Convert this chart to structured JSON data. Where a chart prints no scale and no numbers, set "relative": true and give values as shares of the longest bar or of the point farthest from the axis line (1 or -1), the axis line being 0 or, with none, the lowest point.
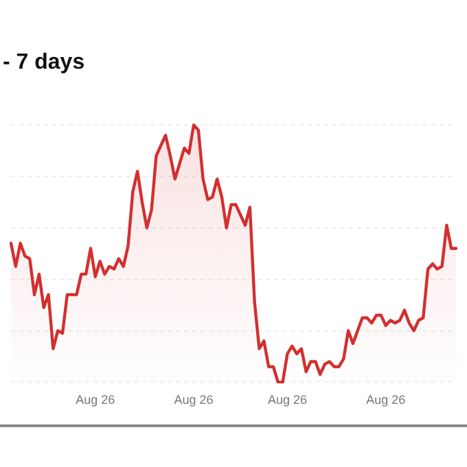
{
  "chart_data": {
    "type": "area",
    "title": "- 7 days",
    "relative": true,
    "grid": "y",
    "legend": false,
    "marker": "none",
    "categories": [
      null,
      null,
      null,
      null,
      null,
      null,
      null,
      null,
      null,
      null,
      null,
      null,
      null,
      null,
      null,
      null,
      null,
      null,
      "Aug 26",
      null,
      null,
      null,
      null,
      null,
      null,
      null,
      null,
      null,
      null,
      null,
      null,
      null,
      null,
      null,
      null,
      null,
      null,
      null,
      null,
      "Aug 26",
      null,
      null,
      null,
      null,
      null,
      null,
      null,
      null,
      null,
      null,
      null,
      null,
      null,
      null,
      null,
      null,
      null,
      null,
      null,
      "Aug 26",
      null,
      null,
      null,
      null,
      null,
      null,
      null,
      null,
      null,
      null,
      null,
      null,
      null,
      null,
      null,
      null,
      null,
      null,
      null,
      null,
      "Aug 26",
      null,
      null,
      null,
      null,
      null,
      null,
      null,
      null,
      null,
      null,
      null,
      null,
      null,
      null,
      null
    ],
    "series": [
      {
        "color": "#d32f2f",
        "values": [
          0.54,
          0.45,
          0.54,
          0.49,
          0.48,
          0.34,
          0.42,
          0.29,
          0.34,
          0.13,
          0.2,
          0.19,
          0.34,
          0.34,
          0.34,
          0.42,
          0.42,
          0.52,
          0.41,
          0.47,
          0.42,
          0.45,
          0.44,
          0.48,
          0.45,
          0.53,
          0.74,
          0.82,
          0.7,
          0.6,
          0.67,
          0.88,
          0.92,
          0.96,
          0.88,
          0.79,
          0.85,
          0.91,
          0.89,
          1,
          0.98,
          0.79,
          0.71,
          0.72,
          0.79,
          0.72,
          0.6,
          0.69,
          0.69,
          0.65,
          0.61,
          0.68,
          0.31,
          0.13,
          0.16,
          0.06,
          0.06,
          0,
          0,
          0.11,
          0.14,
          0.11,
          0.13,
          0.04,
          0.08,
          0.08,
          0.03,
          0.07,
          0.08,
          0.06,
          0.06,
          0.09,
          0.2,
          0.15,
          0.2,
          0.25,
          0.25,
          0.23,
          0.26,
          0.26,
          0.22,
          0.24,
          0.23,
          0.24,
          0.28,
          0.23,
          0.2,
          0.24,
          0.25,
          0.44,
          0.46,
          0.44,
          0.45,
          0.61,
          0.52,
          0.52
        ]
      }
    ]
  }
}
